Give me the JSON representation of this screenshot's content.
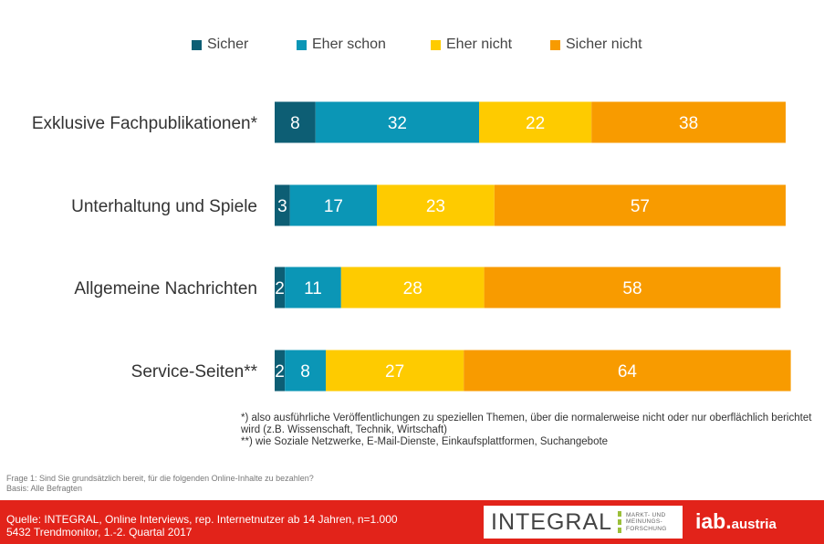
{
  "chart_data": {
    "type": "bar",
    "orientation": "horizontal",
    "stacked": true,
    "categories": [
      "Exklusive Fachpublikationen*",
      "Unterhaltung und Spiele",
      "Allgemeine Nachrichten",
      "Service-Seiten**"
    ],
    "series": [
      {
        "name": "Sicher",
        "color": "#0d5e74",
        "values": [
          8,
          3,
          2,
          2
        ]
      },
      {
        "name": "Eher schon",
        "color": "#0b96b6",
        "values": [
          32,
          17,
          11,
          8
        ]
      },
      {
        "name": "Eher nicht",
        "color": "#fecb00",
        "values": [
          22,
          23,
          28,
          27
        ]
      },
      {
        "name": "Sicher nicht",
        "color": "#f89b00",
        "values": [
          38,
          57,
          58,
          64
        ]
      }
    ],
    "legend": "top",
    "grid": false
  },
  "notes": {
    "line1": "*) also ausführliche Veröffentlichungen zu speziellen Themen, über die normalerweise nicht oder nur oberflächlich berichtet wird (z.B. Wissenschaft, Technik, Wirtschaft)",
    "line2": "**) wie Soziale Netzwerke, E-Mail-Dienste, Einkaufsplattformen, Suchangebote"
  },
  "question": {
    "frage": "Frage 1: Sind Sie grundsätzlich bereit, für die folgenden Online-Inhalte zu bezahlen?",
    "basis": "Basis: Alle Befragten"
  },
  "footer": {
    "source_line1": "Quelle: INTEGRAL, Online Interviews, rep. Internetnutzer ab 14 Jahren, n=1.000",
    "source_line2": "5432 Trendmonitor, 1.-2. Quartal 2017",
    "integral_logo": "INTEGRAL",
    "integral_sub1": "MARKT- UND",
    "integral_sub2": "MEINUNGS-",
    "integral_sub3": "FORSCHUNG",
    "iab_logo": "iab.",
    "iab_sub": "austria"
  }
}
